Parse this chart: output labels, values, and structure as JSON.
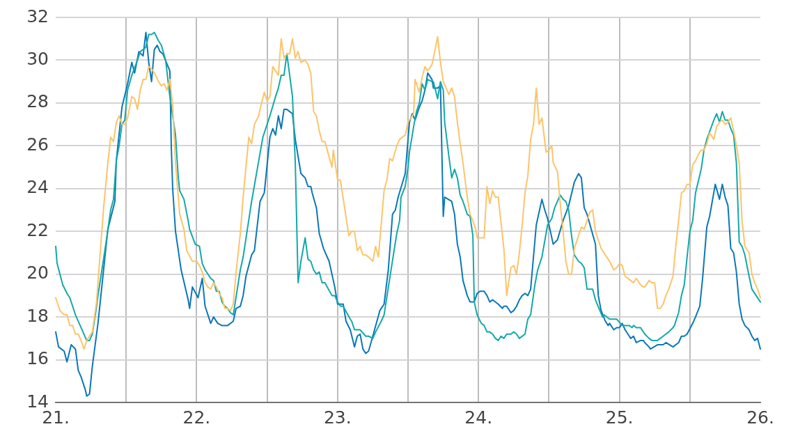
{
  "chart_data": {
    "type": "line",
    "xlim": [
      21,
      26
    ],
    "xticks": [
      {
        "value": 21,
        "label": "21."
      },
      {
        "value": 21.5,
        "label": null
      },
      {
        "value": 22,
        "label": "22."
      },
      {
        "value": 22.5,
        "label": null
      },
      {
        "value": 23,
        "label": "23."
      },
      {
        "value": 23.5,
        "label": null
      },
      {
        "value": 24,
        "label": "24."
      },
      {
        "value": 24.5,
        "label": null
      },
      {
        "value": 25,
        "label": "25."
      },
      {
        "value": 25.5,
        "label": null
      },
      {
        "value": 26,
        "label": "26."
      }
    ],
    "ylim": [
      14,
      32
    ],
    "yticks": [
      14,
      16,
      18,
      20,
      22,
      24,
      26,
      28,
      30,
      32
    ],
    "grid": true,
    "legend": false,
    "marker": "none",
    "line_style": "solid",
    "series": [
      {
        "color": "#fcc46a",
        "x": [
          21.0,
          21.03,
          21.06,
          21.08,
          21.1,
          21.12,
          21.14,
          21.16,
          21.18,
          21.2,
          21.22,
          21.26,
          21.29,
          21.31,
          21.34,
          21.37,
          21.39,
          21.41,
          21.43,
          21.45,
          21.47,
          21.49,
          21.51,
          21.54,
          21.56,
          21.58,
          21.6,
          21.62,
          21.64,
          21.66,
          21.68,
          21.7,
          21.73,
          21.75,
          21.77,
          21.79,
          21.81,
          21.83,
          21.85,
          21.88,
          21.91,
          21.93,
          21.97,
          22.0,
          22.02,
          22.04,
          22.06,
          22.08,
          22.1,
          22.12,
          22.14,
          22.16,
          22.18,
          22.2,
          22.22,
          22.24,
          22.26,
          22.28,
          22.31,
          22.33,
          22.37,
          22.39,
          22.41,
          22.44,
          22.45,
          22.48,
          22.5,
          22.52,
          22.54,
          22.58,
          22.6,
          22.62,
          22.64,
          22.66,
          22.68,
          22.7,
          22.72,
          22.74,
          22.77,
          22.79,
          22.81,
          22.83,
          22.85,
          22.87,
          22.89,
          22.91,
          22.96,
          22.97,
          23.0,
          23.02,
          23.08,
          23.1,
          23.12,
          23.14,
          23.16,
          23.18,
          23.2,
          23.22,
          23.25,
          23.27,
          23.29,
          23.33,
          23.35,
          23.37,
          23.39,
          23.42,
          23.44,
          23.48,
          23.5,
          23.51,
          23.54,
          23.55,
          23.58,
          23.6,
          23.62,
          23.64,
          23.67,
          23.68,
          23.71,
          23.73,
          23.75,
          23.79,
          23.81,
          23.83,
          23.85,
          23.87,
          23.89,
          23.92,
          23.94,
          23.96,
          23.98,
          23.99,
          24.04,
          24.06,
          24.08,
          24.1,
          24.12,
          24.14,
          24.18,
          24.2,
          24.23,
          24.25,
          24.27,
          24.29,
          24.31,
          24.33,
          24.35,
          24.37,
          24.39,
          24.41,
          24.43,
          24.45,
          24.48,
          24.5,
          24.52,
          24.53,
          24.56,
          24.58,
          24.6,
          24.62,
          24.64,
          24.66,
          24.68,
          24.71,
          24.73,
          24.75,
          24.79,
          24.81,
          24.83,
          24.85,
          24.87,
          24.9,
          24.92,
          24.93,
          24.96,
          24.98,
          25.0,
          25.02,
          25.04,
          25.08,
          25.1,
          25.12,
          25.15,
          25.17,
          25.18,
          25.21,
          25.23,
          25.25,
          25.27,
          25.29,
          25.31,
          25.33,
          25.35,
          25.38,
          25.4,
          25.42,
          25.44,
          25.46,
          25.48,
          25.5,
          25.52,
          25.54,
          25.56,
          25.58,
          25.6,
          25.62,
          25.64,
          25.67,
          25.69,
          25.71,
          25.73,
          25.75,
          25.77,
          25.79,
          25.81,
          25.83,
          25.85,
          25.87,
          25.89,
          25.92,
          25.94,
          25.96,
          25.98,
          26.0
        ],
        "values": [
          18.9,
          18.3,
          18.1,
          18.1,
          17.6,
          17.6,
          17.2,
          17.2,
          16.9,
          16.5,
          16.9,
          17.3,
          18.7,
          20.5,
          23.1,
          25.2,
          26.4,
          26.2,
          27.1,
          27.4,
          27.0,
          27.0,
          27.3,
          28.3,
          28.2,
          27.7,
          28.6,
          29.1,
          29.1,
          29.7,
          29.6,
          29.4,
          29.0,
          28.8,
          28.9,
          28.6,
          29.1,
          27.9,
          25.2,
          22.8,
          22.1,
          21.1,
          20.6,
          20.6,
          20.4,
          20.1,
          19.6,
          19.4,
          19.3,
          19.6,
          19.4,
          19.1,
          18.9,
          18.4,
          18.4,
          18.3,
          18.6,
          20.1,
          21.9,
          23.6,
          26.4,
          26.1,
          27.0,
          27.4,
          27.7,
          28.5,
          28.1,
          28.3,
          29.7,
          29.3,
          31.0,
          30.1,
          30.3,
          30.3,
          31.0,
          30.1,
          30.4,
          29.9,
          30.0,
          29.8,
          29.4,
          27.6,
          27.4,
          26.7,
          26.2,
          26.2,
          25.0,
          25.8,
          24.4,
          24.4,
          21.8,
          22.0,
          22.0,
          21.1,
          21.3,
          20.9,
          20.9,
          20.8,
          20.6,
          21.3,
          20.8,
          23.9,
          24.4,
          25.4,
          25.3,
          26.0,
          26.3,
          26.5,
          27.1,
          27.2,
          27.5,
          29.1,
          28.5,
          29.2,
          29.7,
          29.5,
          29.8,
          30.1,
          31.1,
          29.9,
          29.0,
          28.4,
          28.7,
          28.3,
          27.1,
          26.1,
          25.2,
          23.6,
          22.8,
          22.5,
          22.1,
          21.7,
          21.7,
          24.1,
          23.3,
          23.9,
          23.6,
          23.6,
          21.2,
          19.0,
          20.3,
          20.4,
          20.0,
          21.0,
          22.3,
          23.8,
          24.6,
          26.3,
          27.0,
          28.7,
          27.0,
          27.3,
          25.7,
          25.8,
          26.0,
          25.2,
          24.8,
          23.3,
          22.0,
          20.6,
          20.0,
          20.0,
          21.2,
          21.8,
          22.2,
          22.1,
          22.9,
          23.0,
          22.0,
          21.6,
          21.2,
          20.9,
          20.7,
          20.6,
          20.2,
          20.3,
          20.5,
          20.4,
          19.9,
          19.7,
          19.6,
          19.8,
          19.5,
          19.4,
          19.4,
          19.7,
          19.6,
          19.6,
          18.4,
          18.4,
          18.6,
          19.0,
          19.3,
          19.9,
          21.3,
          22.5,
          23.8,
          23.9,
          24.2,
          24.2,
          25.1,
          25.3,
          25.6,
          25.8,
          25.8,
          26.1,
          26.6,
          26.3,
          26.9,
          27.1,
          27.2,
          27.0,
          27.1,
          27.3,
          26.7,
          26.0,
          25.2,
          22.5,
          21.3,
          21.0,
          20.0,
          19.6,
          19.3,
          18.9
        ]
      },
      {
        "color": "#13a8a8",
        "x": [
          21.0,
          21.01,
          21.05,
          21.08,
          21.1,
          21.14,
          21.18,
          21.22,
          21.24,
          21.26,
          21.29,
          21.3,
          21.36,
          21.39,
          21.41,
          21.43,
          21.45,
          21.47,
          21.49,
          21.51,
          21.54,
          21.58,
          21.6,
          21.64,
          21.66,
          21.68,
          21.7,
          21.73,
          21.75,
          21.78,
          21.81,
          21.85,
          21.87,
          21.88,
          21.91,
          21.94,
          21.95,
          21.99,
          22.02,
          22.04,
          22.06,
          22.1,
          22.12,
          22.14,
          22.16,
          22.18,
          22.2,
          22.22,
          22.24,
          22.26,
          22.31,
          22.33,
          22.39,
          22.43,
          22.47,
          22.52,
          22.56,
          22.58,
          22.6,
          22.62,
          22.64,
          22.68,
          22.7,
          22.72,
          22.74,
          22.77,
          22.79,
          22.81,
          22.83,
          22.85,
          22.87,
          22.89,
          22.91,
          22.96,
          22.98,
          23.0,
          23.02,
          23.04,
          23.09,
          23.1,
          23.12,
          23.16,
          23.2,
          23.22,
          23.25,
          23.27,
          23.31,
          23.33,
          23.37,
          23.42,
          23.44,
          23.45,
          23.48,
          23.5,
          23.51,
          23.54,
          23.56,
          23.58,
          23.6,
          23.62,
          23.64,
          23.67,
          23.68,
          23.71,
          23.73,
          23.75,
          23.76,
          23.79,
          23.81,
          23.83,
          23.85,
          23.87,
          23.89,
          23.92,
          23.94,
          23.96,
          23.97,
          23.99,
          24.02,
          24.04,
          24.06,
          24.08,
          24.1,
          24.12,
          24.14,
          24.16,
          24.18,
          24.2,
          24.23,
          24.25,
          24.27,
          24.29,
          24.33,
          24.35,
          24.37,
          24.4,
          24.42,
          24.45,
          24.49,
          24.52,
          24.54,
          24.56,
          24.58,
          24.6,
          24.62,
          24.64,
          24.66,
          24.68,
          24.71,
          24.73,
          24.75,
          24.77,
          24.81,
          24.83,
          24.88,
          24.89,
          24.93,
          24.98,
          25.02,
          25.05,
          25.07,
          25.09,
          25.1,
          25.12,
          25.15,
          25.17,
          25.18,
          25.21,
          25.23,
          25.27,
          25.31,
          25.35,
          25.38,
          25.39,
          25.42,
          25.44,
          25.46,
          25.48,
          25.5,
          25.52,
          25.54,
          25.58,
          25.6,
          25.62,
          25.67,
          25.69,
          25.71,
          25.73,
          25.75,
          25.77,
          25.79,
          25.81,
          25.83,
          25.85,
          25.87,
          25.89,
          25.92,
          25.94,
          26.0
        ],
        "values": [
          21.3,
          20.5,
          19.5,
          19.1,
          18.9,
          18.1,
          17.5,
          16.9,
          16.9,
          17.2,
          18.5,
          19.0,
          21.6,
          23.0,
          23.5,
          25.3,
          26.0,
          27.0,
          27.2,
          28.6,
          29.3,
          30.0,
          30.4,
          30.6,
          31.2,
          31.2,
          31.3,
          30.9,
          30.7,
          30.0,
          28.3,
          26.5,
          24.5,
          23.9,
          23.5,
          22.5,
          22.1,
          21.4,
          21.3,
          20.5,
          20.2,
          19.8,
          19.7,
          19.2,
          19.2,
          18.7,
          18.5,
          18.4,
          18.2,
          18.1,
          20.2,
          20.8,
          23.4,
          24.9,
          26.4,
          27.4,
          28.3,
          28.7,
          29.3,
          29.3,
          30.3,
          28.3,
          25.2,
          19.6,
          20.6,
          21.7,
          20.7,
          20.6,
          20.2,
          20.0,
          20.1,
          19.6,
          19.6,
          19.0,
          19.0,
          18.7,
          18.5,
          18.5,
          17.9,
          17.8,
          17.4,
          17.4,
          17.1,
          17.1,
          17.0,
          17.3,
          17.8,
          18.1,
          19.8,
          21.9,
          22.5,
          23.6,
          24.1,
          25.0,
          25.7,
          26.9,
          27.6,
          28.0,
          28.9,
          28.6,
          29.1,
          29.0,
          29.0,
          28.2,
          29.0,
          28.6,
          27.1,
          25.5,
          24.5,
          24.9,
          24.5,
          23.7,
          23.4,
          22.8,
          22.7,
          21.8,
          18.7,
          18.1,
          17.7,
          17.6,
          17.3,
          17.3,
          17.2,
          17.0,
          16.9,
          17.1,
          17.0,
          17.2,
          17.2,
          17.3,
          17.2,
          17.0,
          17.2,
          17.9,
          18.1,
          19.5,
          20.2,
          20.8,
          22.3,
          22.6,
          23.1,
          23.4,
          23.7,
          23.5,
          23.4,
          23.0,
          21.8,
          20.9,
          20.6,
          20.5,
          20.3,
          19.3,
          19.3,
          18.8,
          18.0,
          18.1,
          17.9,
          17.9,
          17.6,
          17.6,
          17.6,
          17.5,
          17.6,
          17.5,
          17.5,
          17.3,
          17.2,
          17.0,
          16.9,
          16.9,
          17.1,
          17.3,
          17.5,
          17.6,
          18.2,
          19.0,
          19.5,
          20.8,
          22.0,
          22.5,
          23.8,
          24.9,
          25.8,
          26.3,
          27.2,
          27.5,
          27.1,
          27.6,
          27.2,
          27.2,
          26.8,
          26.5,
          25.2,
          21.5,
          21.3,
          20.9,
          19.9,
          19.3,
          18.7
        ]
      },
      {
        "color": "#0a77b8",
        "x": [
          21.0,
          21.02,
          21.06,
          21.08,
          21.11,
          21.14,
          21.16,
          21.18,
          21.21,
          21.22,
          21.24,
          21.26,
          21.3,
          21.37,
          21.42,
          21.43,
          21.47,
          21.51,
          21.54,
          21.56,
          21.59,
          21.62,
          21.64,
          21.66,
          21.68,
          21.7,
          21.72,
          21.74,
          21.76,
          21.81,
          21.82,
          21.83,
          21.85,
          21.89,
          21.94,
          21.95,
          21.97,
          22.01,
          22.04,
          22.06,
          22.1,
          22.12,
          22.15,
          22.18,
          22.22,
          22.26,
          22.28,
          22.31,
          22.33,
          22.35,
          22.39,
          22.41,
          22.45,
          22.48,
          22.52,
          22.54,
          22.56,
          22.58,
          22.6,
          22.62,
          22.64,
          22.68,
          22.7,
          22.74,
          22.77,
          22.79,
          22.81,
          22.82,
          22.85,
          22.87,
          22.9,
          22.94,
          22.98,
          23.0,
          23.04,
          23.06,
          23.09,
          23.12,
          23.14,
          23.16,
          23.18,
          23.2,
          23.22,
          23.25,
          23.3,
          23.33,
          23.36,
          23.39,
          23.41,
          23.43,
          23.48,
          23.51,
          23.53,
          23.55,
          23.58,
          23.6,
          23.62,
          23.64,
          23.67,
          23.68,
          23.71,
          23.73,
          23.75,
          23.76,
          23.81,
          23.83,
          23.85,
          23.87,
          23.89,
          23.92,
          23.94,
          23.97,
          23.99,
          24.01,
          24.04,
          24.06,
          24.08,
          24.1,
          24.14,
          24.17,
          24.18,
          24.2,
          24.23,
          24.25,
          24.27,
          24.29,
          24.31,
          24.33,
          24.35,
          24.37,
          24.41,
          24.45,
          24.47,
          24.49,
          24.53,
          24.56,
          24.6,
          24.64,
          24.68,
          24.71,
          24.73,
          24.75,
          24.77,
          24.83,
          24.85,
          24.87,
          24.9,
          24.92,
          24.93,
          24.96,
          24.98,
          25.0,
          25.02,
          25.04,
          25.07,
          25.08,
          25.1,
          25.12,
          25.15,
          25.17,
          25.18,
          25.21,
          25.22,
          25.27,
          25.31,
          25.33,
          25.38,
          25.42,
          25.44,
          25.46,
          25.48,
          25.52,
          25.54,
          25.57,
          25.59,
          25.62,
          25.64,
          25.68,
          25.71,
          25.73,
          25.75,
          25.77,
          25.79,
          25.81,
          25.83,
          25.85,
          25.87,
          25.89,
          25.92,
          25.94,
          25.96,
          25.98,
          26.0
        ],
        "values": [
          17.3,
          16.6,
          16.4,
          15.9,
          16.7,
          16.5,
          15.5,
          15.2,
          14.6,
          14.3,
          14.4,
          15.7,
          17.7,
          22.1,
          23.4,
          25.3,
          27.8,
          28.9,
          29.9,
          29.4,
          30.4,
          30.2,
          31.3,
          29.9,
          29.0,
          30.5,
          30.7,
          30.4,
          30.3,
          29.5,
          26.0,
          24.0,
          22.0,
          20.2,
          18.8,
          18.4,
          19.4,
          18.9,
          19.8,
          18.5,
          17.7,
          18.0,
          17.7,
          17.6,
          17.6,
          17.8,
          18.4,
          18.5,
          19.0,
          19.9,
          20.9,
          21.1,
          23.4,
          23.8,
          26.4,
          26.8,
          26.5,
          27.4,
          26.8,
          27.7,
          27.7,
          27.5,
          26.3,
          24.7,
          24.5,
          24.1,
          24.1,
          23.8,
          23.1,
          21.9,
          21.2,
          20.6,
          19.4,
          18.6,
          18.6,
          17.8,
          17.4,
          16.6,
          17.1,
          17.2,
          16.5,
          16.3,
          16.4,
          17.1,
          18.3,
          18.6,
          20.2,
          22.8,
          23.0,
          23.6,
          24.7,
          27.1,
          27.5,
          27.2,
          27.8,
          28.1,
          28.6,
          29.4,
          29.1,
          28.7,
          28.7,
          28.8,
          22.7,
          23.6,
          23.4,
          22.8,
          21.4,
          20.8,
          19.7,
          19.0,
          18.7,
          18.7,
          19.1,
          19.2,
          19.2,
          19.0,
          18.7,
          18.8,
          18.6,
          18.4,
          18.5,
          18.5,
          18.2,
          18.3,
          18.5,
          18.8,
          19.0,
          19.1,
          19.0,
          19.3,
          22.3,
          23.5,
          23.0,
          22.6,
          21.4,
          21.6,
          22.5,
          23.2,
          24.3,
          24.7,
          24.5,
          23.1,
          22.8,
          21.4,
          19.0,
          18.3,
          17.8,
          17.6,
          17.7,
          17.4,
          17.5,
          17.5,
          17.7,
          17.4,
          17.1,
          17.0,
          17.1,
          16.8,
          16.9,
          16.9,
          16.8,
          16.6,
          16.5,
          16.7,
          16.7,
          16.8,
          16.6,
          16.8,
          17.1,
          17.1,
          17.2,
          17.7,
          18.0,
          18.5,
          19.8,
          22.2,
          22.7,
          24.2,
          23.5,
          24.2,
          23.6,
          23.2,
          21.2,
          21.0,
          20.1,
          18.6,
          17.9,
          17.6,
          17.4,
          17.1,
          16.9,
          17.0,
          16.5
        ]
      }
    ]
  }
}
